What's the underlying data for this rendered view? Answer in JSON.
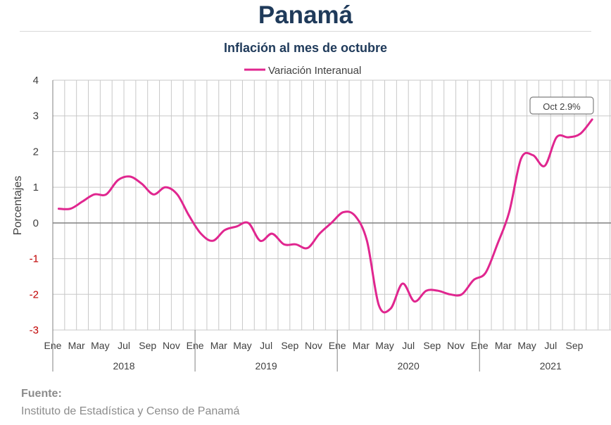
{
  "header": {
    "title": "Panamá"
  },
  "footer": {
    "source_label": "Fuente:",
    "source_text": "Instituto de Estadística y Censo de Panamá"
  },
  "colors": {
    "series": "#e0268f",
    "negative_tick": "#c00000",
    "grid": "#c8c8c8",
    "zero_line": "#808080"
  },
  "chart_data": {
    "type": "line",
    "title": "Inflación al mes de octubre",
    "ylabel": "Porcentajes",
    "xlabel": "",
    "ylim": [
      -3,
      4
    ],
    "yticks": [
      4,
      3,
      2,
      1,
      0,
      -1,
      -2,
      -3
    ],
    "grid": true,
    "legend": "top-center",
    "month_tick_labels": [
      "Ene",
      "Mar",
      "May",
      "Jul",
      "Sep",
      "Nov"
    ],
    "years": [
      "2018",
      "2019",
      "2020",
      "2021"
    ],
    "series": [
      {
        "name": "Variación Interanual",
        "x": [
          "2018-01",
          "2018-02",
          "2018-03",
          "2018-04",
          "2018-05",
          "2018-06",
          "2018-07",
          "2018-08",
          "2018-09",
          "2018-10",
          "2018-11",
          "2018-12",
          "2019-01",
          "2019-02",
          "2019-03",
          "2019-04",
          "2019-05",
          "2019-06",
          "2019-07",
          "2019-08",
          "2019-09",
          "2019-10",
          "2019-11",
          "2019-12",
          "2020-01",
          "2020-02",
          "2020-03",
          "2020-04",
          "2020-05",
          "2020-06",
          "2020-07",
          "2020-08",
          "2020-09",
          "2020-10",
          "2020-11",
          "2020-12",
          "2021-01",
          "2021-02",
          "2021-03",
          "2021-04",
          "2021-05",
          "2021-06",
          "2021-07",
          "2021-08",
          "2021-09",
          "2021-10"
        ],
        "values": [
          0.4,
          0.4,
          0.6,
          0.8,
          0.8,
          1.2,
          1.3,
          1.1,
          0.8,
          1.0,
          0.8,
          0.2,
          -0.3,
          -0.5,
          -0.2,
          -0.1,
          0.0,
          -0.5,
          -0.3,
          -0.6,
          -0.6,
          -0.7,
          -0.3,
          0.0,
          0.3,
          0.2,
          -0.5,
          -2.3,
          -2.4,
          -1.7,
          -2.2,
          -1.9,
          -1.9,
          -2.0,
          -2.0,
          -1.6,
          -1.4,
          -0.6,
          0.3,
          1.8,
          1.9,
          1.6,
          2.4,
          2.4,
          2.5,
          2.9
        ]
      }
    ],
    "annotation": {
      "text": "Oct 2.9%"
    }
  }
}
